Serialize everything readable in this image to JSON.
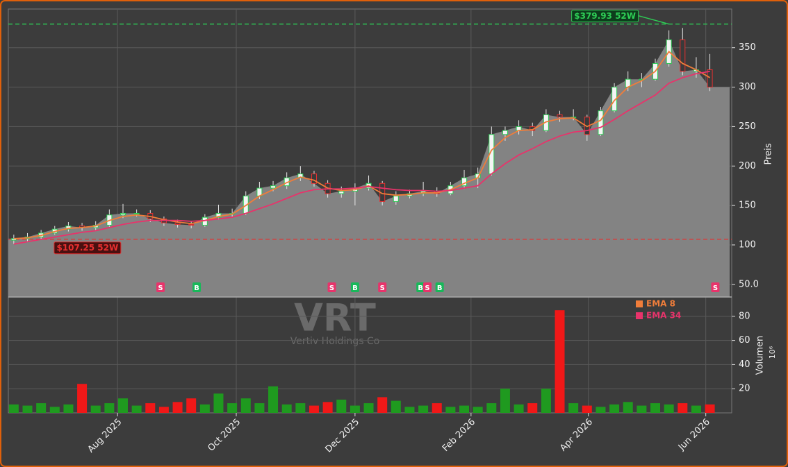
{
  "chart_data": [
    {
      "type": "candlestick",
      "x": [
        0.4,
        1.4,
        2.4,
        3.4,
        4.4,
        5.4,
        6.4,
        7.4,
        8.4,
        9.4,
        10.4,
        11.4,
        12.4,
        13.4,
        14.4,
        15.4,
        16.4,
        17.4,
        18.4,
        19.4,
        20.4,
        21.4,
        22.4,
        23.4,
        24.4,
        25.4,
        26.4,
        27.4,
        28.4,
        29.4,
        30.4,
        31.4,
        32.4,
        33.4,
        34.4,
        35.4,
        36.4,
        37.4,
        38.4,
        39.4,
        40.4,
        41.4,
        42.4,
        43.4,
        44.4,
        45.4,
        46.4,
        47.4,
        48.4,
        49.4,
        50.4,
        51.4
      ],
      "open": [
        106,
        108,
        110,
        115,
        120,
        124,
        122,
        125,
        138,
        140,
        140,
        133,
        128,
        126,
        125,
        135,
        140,
        140,
        162,
        172,
        175,
        185,
        190,
        178,
        165,
        168,
        172,
        178,
        155,
        162,
        165,
        168,
        165,
        175,
        185,
        190,
        240,
        245,
        250,
        245,
        265,
        262,
        262,
        240,
        270,
        300,
        310,
        310,
        330,
        360,
        320,
        322
      ],
      "high": [
        113,
        115,
        119,
        124,
        129,
        128,
        130,
        145,
        152,
        145,
        144,
        136,
        132,
        130,
        139,
        151,
        146,
        168,
        180,
        181,
        192,
        200,
        194,
        182,
        174,
        178,
        188,
        181,
        168,
        170,
        180,
        173,
        180,
        195,
        198,
        250,
        250,
        258,
        255,
        272,
        270,
        272,
        265,
        275,
        305,
        320,
        318,
        336,
        372,
        375,
        338,
        342
      ],
      "low": [
        101,
        104,
        107,
        113,
        117,
        118,
        119,
        123,
        134,
        136,
        129,
        124,
        122,
        121,
        123,
        132,
        136,
        138,
        158,
        168,
        171,
        181,
        174,
        160,
        160,
        150,
        169,
        150,
        151,
        159,
        162,
        161,
        163,
        171,
        172,
        188,
        232,
        240,
        238,
        243,
        256,
        258,
        232,
        238,
        268,
        295,
        300,
        308,
        326,
        315,
        312,
        295
      ],
      "close": [
        108,
        110,
        115,
        120,
        124,
        122,
        125,
        138,
        140,
        140,
        133,
        128,
        126,
        125,
        135,
        140,
        140,
        162,
        172,
        175,
        185,
        190,
        178,
        165,
        168,
        172,
        178,
        155,
        162,
        165,
        168,
        165,
        175,
        185,
        190,
        240,
        245,
        250,
        245,
        265,
        262,
        262,
        240,
        270,
        300,
        310,
        310,
        330,
        360,
        320,
        322,
        300
      ],
      "series": [
        {
          "name": "EMA 8",
          "color": "#f07d3a",
          "values": [
            108,
            109,
            112,
            117,
            121,
            122,
            124,
            131,
            136,
            138,
            136,
            132,
            129,
            127,
            131,
            136,
            139,
            150,
            162,
            170,
            179,
            186,
            182,
            172,
            169,
            170,
            175,
            165,
            163,
            164,
            166,
            166,
            170,
            178,
            185,
            220,
            236,
            245,
            246,
            256,
            260,
            261,
            250,
            258,
            283,
            300,
            308,
            320,
            345,
            330,
            322,
            312
          ]
        },
        {
          "name": "EMA 34",
          "color": "#e8336b",
          "values": [
            101,
            104,
            107,
            110,
            113,
            116,
            118,
            122,
            126,
            129,
            131,
            131,
            131,
            130,
            131,
            133,
            135,
            140,
            146,
            152,
            159,
            166,
            170,
            171,
            171,
            172,
            174,
            172,
            170,
            169,
            169,
            168,
            169,
            172,
            175,
            190,
            203,
            214,
            222,
            231,
            238,
            243,
            245,
            249,
            259,
            270,
            280,
            290,
            305,
            312,
            317,
            320
          ]
        }
      ],
      "ylabel": "Preis",
      "xlim": [
        0,
        53
      ],
      "xticks": [
        {
          "value": 8.0,
          "label": "Aug 2025"
        },
        {
          "value": 16.7,
          "label": "Oct 2025"
        },
        {
          "value": 25.4,
          "label": "Dec 2025"
        },
        {
          "value": 33.9,
          "label": "Feb 2026"
        },
        {
          "value": 42.5,
          "label": "Apr 2026"
        },
        {
          "value": 51.1,
          "label": "Jun 2026"
        }
      ],
      "ylim": [
        34,
        399
      ],
      "yticks": [
        {
          "value": 50,
          "label": "50.0"
        },
        100,
        150,
        200,
        250,
        300,
        350
      ],
      "grid": true,
      "area_color": "#838383",
      "reference_lines": [
        {
          "value": 379.93,
          "x": 48.4,
          "label": "$379.93 52W",
          "color": "#2ecc55"
        },
        {
          "value": 107.25,
          "x": 0.4,
          "label": "$107.25 52W",
          "color": "#e83030"
        }
      ],
      "signals": [
        {
          "x": 11.15,
          "label": "S",
          "color": "#e8336b"
        },
        {
          "x": 13.8,
          "label": "B",
          "color": "#18b85a"
        },
        {
          "x": 23.7,
          "label": "S",
          "color": "#e8336b"
        },
        {
          "x": 25.4,
          "label": "B",
          "color": "#18b85a"
        },
        {
          "x": 27.4,
          "label": "S",
          "color": "#e8336b"
        },
        {
          "x": 30.2,
          "label": "B",
          "color": "#18b85a"
        },
        {
          "x": 30.7,
          "label": "S",
          "color": "#e8336b"
        },
        {
          "x": 31.6,
          "label": "B",
          "color": "#18b85a"
        },
        {
          "x": 51.8,
          "label": "S",
          "color": "#e8336b"
        }
      ]
    },
    {
      "type": "bar",
      "title": "VRT",
      "subtitle": "Vertiv Holdings Co",
      "values": [
        7,
        6,
        8,
        5,
        7,
        24,
        6,
        8,
        12,
        6,
        8,
        5,
        9,
        12,
        7,
        16,
        8,
        12,
        8,
        22,
        7,
        8,
        6,
        9,
        11,
        6,
        8,
        13,
        10,
        5,
        6,
        8,
        5,
        6,
        5,
        8,
        20,
        7,
        8,
        20,
        85,
        8,
        6,
        5,
        7,
        9,
        6,
        8,
        7,
        8,
        6,
        7
      ],
      "up_color": "#1f9a1f",
      "down_color": "#f01818",
      "ylabel": "Volumen",
      "yunit": "10⁶",
      "ylim": [
        0,
        96
      ],
      "yticks": [
        20,
        40,
        60,
        80
      ]
    }
  ]
}
